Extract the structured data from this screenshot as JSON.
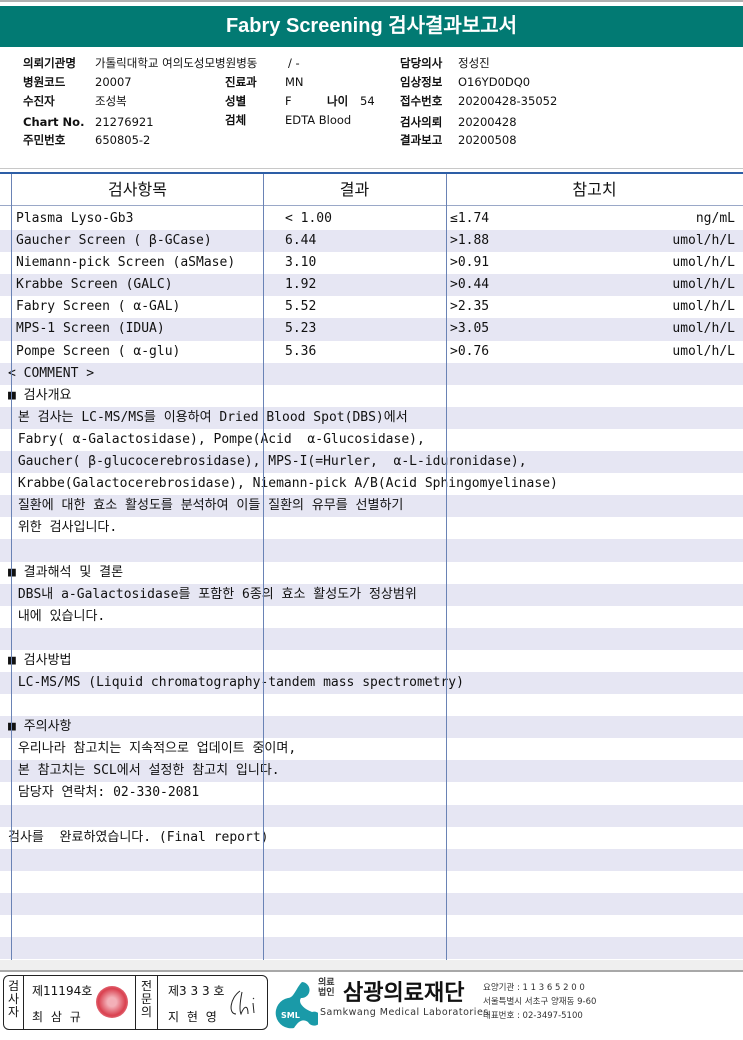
{
  "title": "Fabry Screening 검사결과보고서",
  "patient_info": {
    "institution_label": "의뢰기관명",
    "institution": "가톨릭대학교 여의도성모병원병동",
    "ward": "/ -",
    "doctor_label": "담당의사",
    "doctor": "정성진",
    "hospital_code_label": "병원코드",
    "hospital_code": "20007",
    "dept_label": "진료과",
    "dept": "MN",
    "clinical_label": "임상정보",
    "clinical": "O16YD0DQ0",
    "patient_label": "수진자",
    "patient": "조성복",
    "sex_label": "성별",
    "sex": "F",
    "age_label": "나이",
    "age": "54",
    "receipt_label": "접수번호",
    "receipt": "20200428-35052",
    "chart_label": "Chart No.",
    "chart": "21276921",
    "specimen_label": "검체",
    "specimen": "EDTA Blood",
    "request_label": "검사의뢰",
    "request": "20200428",
    "id_label": "주민번호",
    "id": "650805-2",
    "report_label": "결과보고",
    "report": "20200508"
  },
  "table": {
    "headers": {
      "item": "검사항목",
      "result": "결과",
      "reference": "참고치"
    },
    "results": [
      {
        "item": "Plasma Lyso-Gb3",
        "result": "< 1.00",
        "reference": "≤1.74",
        "unit": "ng/mL"
      },
      {
        "item": "Gaucher Screen ( β-GCase)",
        "result": "6.44",
        "reference": ">1.88",
        "unit": "umol/h/L"
      },
      {
        "item": "Niemann-pick Screen (aSMase)",
        "result": "3.10",
        "reference": ">0.91",
        "unit": "umol/h/L"
      },
      {
        "item": "Krabbe Screen (GALC)",
        "result": "1.92",
        "reference": ">0.44",
        "unit": "umol/h/L"
      },
      {
        "item": "Fabry Screen ( α-GAL)",
        "result": "5.52",
        "reference": ">2.35",
        "unit": "umol/h/L"
      },
      {
        "item": "MPS-1 Screen (IDUA)",
        "result": "5.23",
        "reference": ">3.05",
        "unit": "umol/h/L"
      },
      {
        "item": "Pompe Screen ( α-glu)",
        "result": "5.36",
        "reference": ">0.76",
        "unit": "umol/h/L"
      }
    ],
    "comment_label": "< COMMENT >",
    "comment_lines": [
      "■ 검사개요",
      " 본 검사는 LC-MS/MS를 이용하여 Dried Blood Spot(DBS)에서",
      " Fabry( α-Galactosidase), Pompe(Acid  α-Glucosidase),",
      " Gaucher( β-glucocerebrosidase), MPS-I(=Hurler,  α-L-iduronidase),",
      " Krabbe(Galactocerebrosidase), Niemann-pick A/B(Acid Sphingomyelinase)",
      " 질환에 대한 효소 활성도를 분석하여 이들 질환의 유무를 선별하기",
      " 위한 검사입니다.",
      "",
      "■ 결과해석 및 결론",
      " DBS내 a-Galactosidase를 포함한 6종의 효소 활성도가 정상범위",
      " 내에 있습니다.",
      "",
      "■ 검사방법",
      " LC-MS/MS (Liquid chromatography-tandem mass spectrometry)",
      "",
      "■ 주의사항",
      " 우리나라 참고치는 지속적으로 업데이트 중이며,",
      " 본 참고치는 SCL에서 설정한 참고치 입니다.",
      " 담당자 연락처: 02-330-2081",
      "",
      "검사를  완료하였습니다. (Final report)"
    ]
  },
  "footer": {
    "examiner_label": "검사자",
    "examiner_no": "제11194호",
    "examiner_name": "최 삼 규",
    "specialist_label": "전문의",
    "specialist_no": "제3 3 3 호",
    "specialist_name": "지 현 영",
    "logo_text": "SML",
    "org_prefix_1": "의료",
    "org_prefix_2": "법인",
    "org_name": "삼광의료재단",
    "org_english": "Samkwang Medical Laboratories",
    "org_code": "요양기관 : 1 1 3 6 5 2 0 0",
    "org_address": "서울특별시 서초구 양재동 9-60",
    "org_phone": "대표번호 : 02-3497-5100"
  },
  "colors": {
    "title_bar": "#027a73",
    "row_stripe": "#e6e6f3",
    "grid_line": "#6a83b5",
    "logo": "#1a9aa8"
  }
}
